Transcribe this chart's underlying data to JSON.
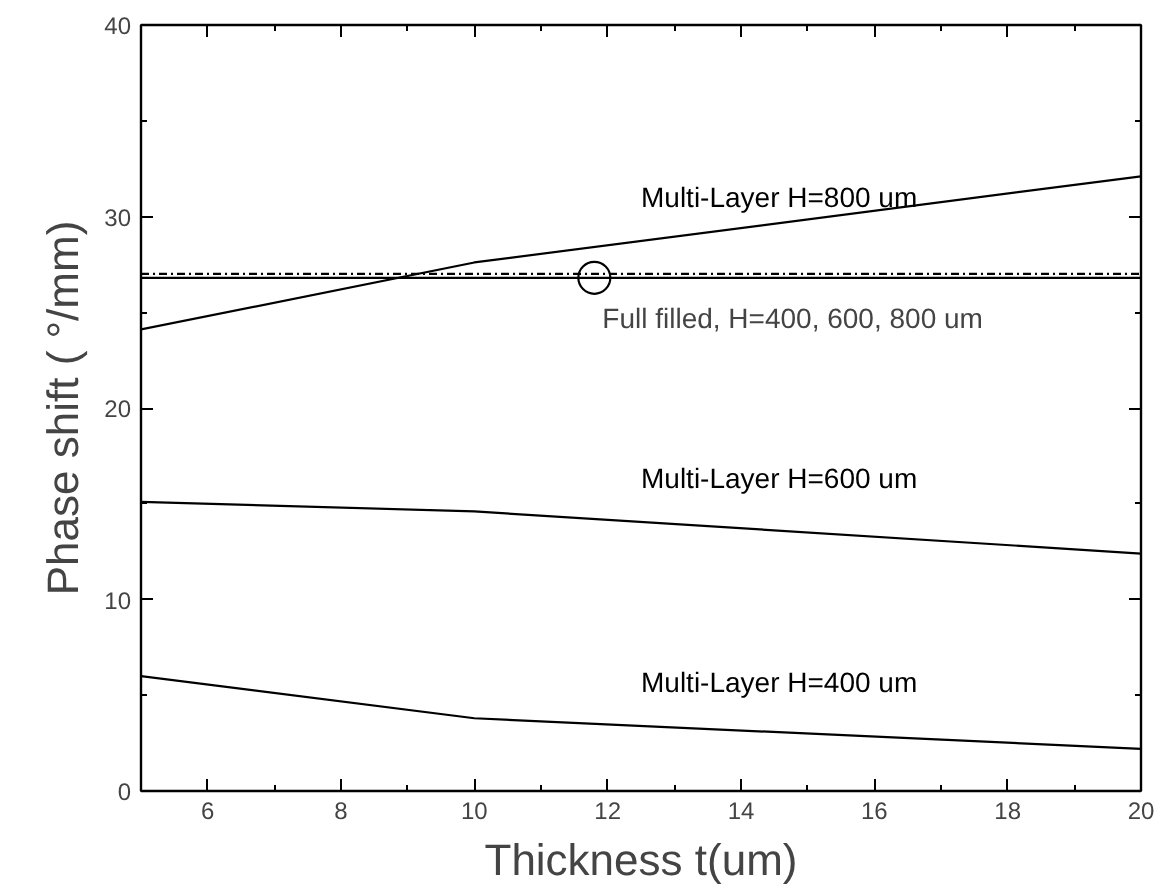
{
  "chart_data": {
    "type": "line",
    "xlabel": "Thickness t(um)",
    "ylabel": "Phase shift ( °/mm)",
    "xlim": [
      5,
      20
    ],
    "ylim": [
      0,
      40
    ],
    "xticks": [
      6,
      8,
      10,
      12,
      14,
      16,
      18,
      {
        "value": 20,
        "label": "20"
      }
    ],
    "yticks": [
      0,
      10,
      20,
      30,
      40
    ],
    "grid": false,
    "legend": false,
    "marker": "none",
    "series": [
      {
        "name": "Multi-Layer H=800 um",
        "color": "#000000",
        "x": [
          5,
          10,
          20
        ],
        "values": [
          24.1,
          27.6,
          32.1
        ]
      },
      {
        "color": "#000000",
        "x": [
          5,
          20
        ],
        "values": [
          27.0,
          27.0
        ],
        "line_style": "dotted"
      },
      {
        "color": "#000000",
        "x": [
          5,
          20
        ],
        "values": [
          26.8,
          26.8
        ]
      },
      {
        "name": "Multi-Layer H=600 um",
        "color": "#000000",
        "x": [
          5,
          10,
          20
        ],
        "values": [
          15.1,
          14.6,
          12.4
        ]
      },
      {
        "name": "Multi-Layer H=400 um",
        "color": "#000000",
        "x": [
          5,
          10,
          20
        ],
        "values": [
          6.0,
          3.8,
          2.2
        ]
      }
    ],
    "annotations": [
      {
        "text": "Full filled, H=400, 600, 800 um",
        "x": 11.8,
        "y": 26.8
      }
    ]
  }
}
